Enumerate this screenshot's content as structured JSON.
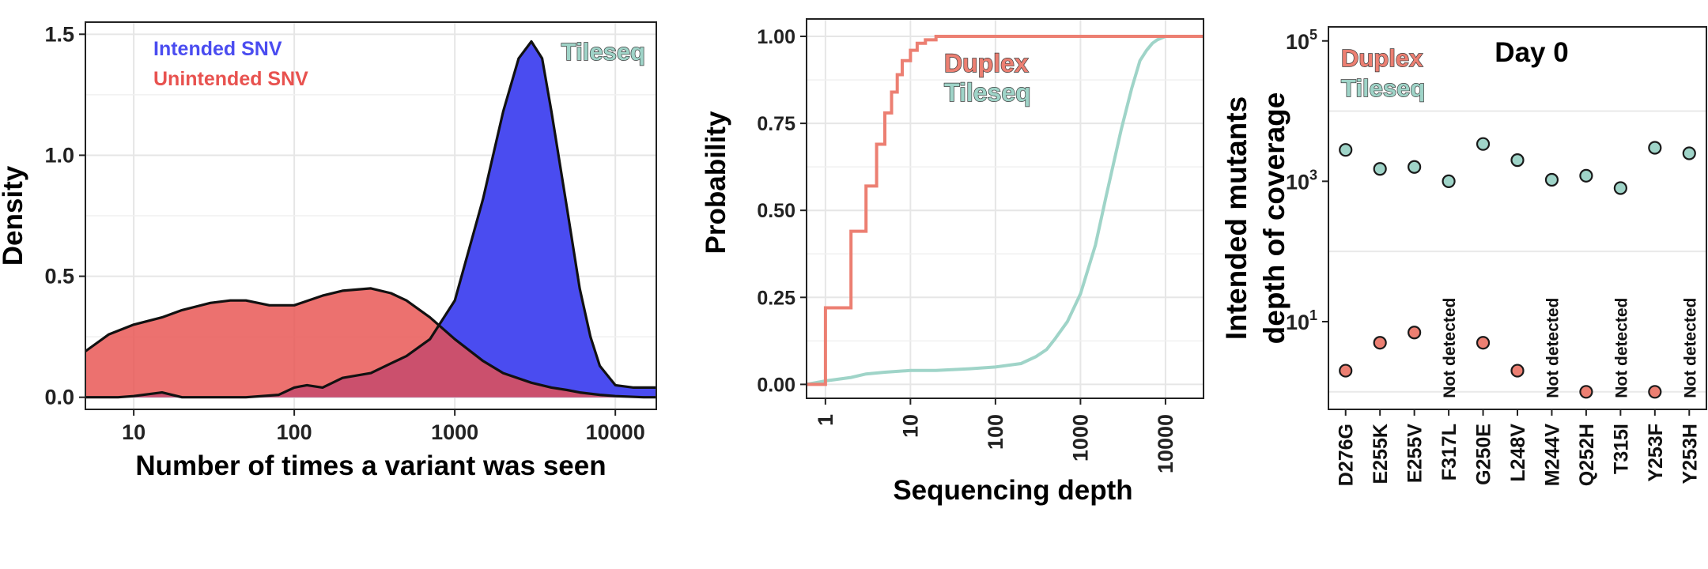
{
  "colors": {
    "intended_blue": "#4a4cf0",
    "unintended_red": "#e8524f",
    "overlap_maroon": "#b8334c",
    "duplex": "#ec7f72",
    "tileseq": "#9fd4c8",
    "grid": "#e6e6e6",
    "frame": "#222222"
  },
  "chart_data": [
    {
      "id": "density",
      "type": "area",
      "title": "",
      "xlabel": "Number of times a variant was seen",
      "ylabel": "Density",
      "xscale": "log10",
      "xlim": [
        5,
        18000
      ],
      "ylim": [
        -0.05,
        1.55
      ],
      "xticks": [
        10,
        100,
        1000,
        10000
      ],
      "xtick_labels": [
        "10",
        "100",
        "1000",
        "10000"
      ],
      "yticks": [
        0.0,
        0.5,
        1.0,
        1.5
      ],
      "ytick_labels": [
        "0.0",
        "0.5",
        "1.0",
        "1.5"
      ],
      "grid": true,
      "legend_position": "top-left",
      "annotation": "Tileseq",
      "series": [
        {
          "name": "Intended SNV",
          "color": "#4a4cf0",
          "x": [
            5,
            8,
            10,
            15,
            20,
            30,
            50,
            80,
            100,
            120,
            150,
            200,
            300,
            400,
            500,
            700,
            1000,
            1500,
            2000,
            2500,
            3000,
            3500,
            4000,
            5000,
            6000,
            7000,
            8000,
            10000,
            13000,
            15000,
            18000
          ],
          "y": [
            0.0,
            0.0,
            0.005,
            0.02,
            0.0,
            0.0,
            0.0,
            0.01,
            0.04,
            0.05,
            0.04,
            0.08,
            0.1,
            0.14,
            0.17,
            0.24,
            0.4,
            0.82,
            1.18,
            1.4,
            1.47,
            1.4,
            1.18,
            0.78,
            0.45,
            0.25,
            0.13,
            0.05,
            0.04,
            0.04,
            0.04
          ]
        },
        {
          "name": "Unintended SNV",
          "color": "#e8524f",
          "x": [
            5,
            7,
            10,
            15,
            20,
            30,
            40,
            50,
            70,
            100,
            150,
            200,
            300,
            400,
            500,
            700,
            1000,
            1500,
            2000,
            3000,
            4000,
            5000,
            6000,
            8000,
            10000,
            15000,
            18000
          ],
          "y": [
            0.19,
            0.26,
            0.3,
            0.33,
            0.36,
            0.39,
            0.4,
            0.4,
            0.38,
            0.38,
            0.42,
            0.44,
            0.45,
            0.43,
            0.4,
            0.33,
            0.24,
            0.15,
            0.1,
            0.06,
            0.04,
            0.03,
            0.02,
            0.01,
            0.005,
            0.0,
            0.0
          ]
        }
      ]
    },
    {
      "id": "ecdf",
      "type": "line",
      "title": "",
      "xlabel": "Sequencing depth",
      "ylabel": "Probability",
      "xscale": "log10",
      "xlim": [
        0.6,
        28000
      ],
      "ylim": [
        -0.04,
        1.05
      ],
      "xticks": [
        1,
        10,
        100,
        1000,
        10000
      ],
      "xtick_labels": [
        "1",
        "10",
        "100",
        "1000",
        "10000"
      ],
      "yticks": [
        0.0,
        0.25,
        0.5,
        0.75,
        1.0
      ],
      "ytick_labels": [
        "0.00",
        "0.25",
        "0.50",
        "0.75",
        "1.00"
      ],
      "grid": true,
      "legend_position": "top-center",
      "series": [
        {
          "name": "Duplex",
          "color": "#ec7f72",
          "step": true,
          "x": [
            0.6,
            1,
            2,
            3,
            4,
            5,
            6,
            7,
            8,
            10,
            12,
            15,
            20,
            28000
          ],
          "y": [
            0.0,
            0.22,
            0.44,
            0.57,
            0.69,
            0.78,
            0.84,
            0.89,
            0.93,
            0.96,
            0.98,
            0.99,
            1.0,
            1.0
          ]
        },
        {
          "name": "Tileseq",
          "color": "#9fd4c8",
          "step": false,
          "x": [
            0.6,
            1,
            2,
            3,
            5,
            10,
            20,
            50,
            100,
            200,
            300,
            400,
            500,
            700,
            1000,
            1500,
            2000,
            3000,
            4000,
            5000,
            6000,
            7000,
            8000,
            10000,
            12000,
            15000,
            28000
          ],
          "y": [
            0.0,
            0.01,
            0.02,
            0.03,
            0.035,
            0.04,
            0.04,
            0.045,
            0.05,
            0.06,
            0.08,
            0.1,
            0.13,
            0.18,
            0.26,
            0.4,
            0.54,
            0.73,
            0.85,
            0.93,
            0.96,
            0.98,
            0.99,
            1.0,
            1.0,
            1.0,
            1.0
          ]
        }
      ]
    },
    {
      "id": "coverage",
      "type": "scatter",
      "title": "Day 0",
      "xlabel": "",
      "ylabel": [
        "Intended mutants",
        "depth of coverage"
      ],
      "yscale": "log10",
      "ylim_log10": [
        -0.25,
        5.2
      ],
      "ytick_labels": [
        {
          "base": "10",
          "exp": "1",
          "log": 1
        },
        {
          "base": "10",
          "exp": "3",
          "log": 3
        },
        {
          "base": "10",
          "exp": "5",
          "log": 5
        }
      ],
      "minor_grid_log": [
        0,
        2,
        4
      ],
      "categories": [
        "D276G",
        "E255K",
        "E255V",
        "F317L",
        "G250E",
        "L248V",
        "M244V",
        "Q252H",
        "T315I",
        "Y253F",
        "Y253H"
      ],
      "legend_position": "top-left",
      "not_detected_label": "Not detected",
      "series": [
        {
          "name": "Duplex",
          "color": "#ec7f72",
          "values": [
            2,
            5,
            7,
            null,
            5,
            2,
            null,
            1,
            null,
            1,
            null
          ],
          "not_detected": [
            false,
            false,
            false,
            true,
            false,
            false,
            true,
            false,
            true,
            false,
            true
          ]
        },
        {
          "name": "Tileseq",
          "color": "#9fd4c8",
          "values": [
            2800,
            1500,
            1600,
            1000,
            3400,
            2000,
            1050,
            1200,
            800,
            3000,
            2500
          ],
          "not_detected": [
            false,
            false,
            false,
            false,
            false,
            false,
            false,
            false,
            false,
            false,
            false
          ]
        }
      ]
    }
  ]
}
